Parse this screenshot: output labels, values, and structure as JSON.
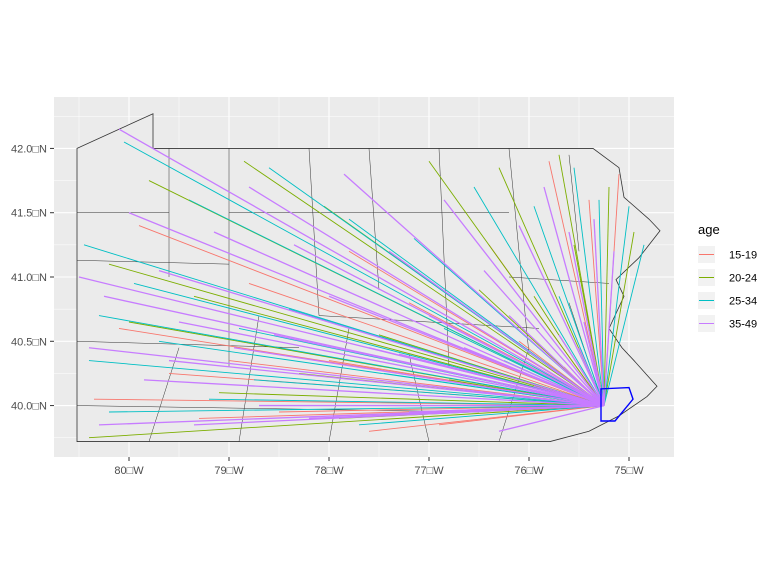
{
  "plot": {
    "panel_background": "#ebebeb",
    "grid_color": "#ffffff",
    "county_border_color": "#333333",
    "county_fill": "#ebebeb",
    "destination_county_color": "#0000ff"
  },
  "axes": {
    "x_ticks": [
      {
        "value": -80,
        "label": "80□W"
      },
      {
        "value": -79,
        "label": "79□W"
      },
      {
        "value": -78,
        "label": "78□W"
      },
      {
        "value": -77,
        "label": "77□W"
      },
      {
        "value": -76,
        "label": "76□W"
      },
      {
        "value": -75,
        "label": "75□W"
      }
    ],
    "y_ticks": [
      {
        "value": 40.0,
        "label": "40.0□N"
      },
      {
        "value": 40.5,
        "label": "40.5□N"
      },
      {
        "value": 41.0,
        "label": "41.0□N"
      },
      {
        "value": 41.5,
        "label": "41.5□N"
      },
      {
        "value": 42.0,
        "label": "42.0□N"
      }
    ],
    "xlim": [
      -80.75,
      -74.55
    ],
    "ylim": [
      39.6,
      42.4
    ]
  },
  "legend": {
    "title": "age",
    "items": [
      {
        "label": "15-19",
        "color": "#f8766d"
      },
      {
        "label": "20-24",
        "color": "#7cae00"
      },
      {
        "label": "25-34",
        "color": "#00bfc4"
      },
      {
        "label": "35-49",
        "color": "#c77cff"
      }
    ]
  },
  "chart_data": {
    "type": "map-flow",
    "destination": {
      "lon": -75.25,
      "lat": 40.0
    },
    "series": [
      {
        "name": "15-19",
        "origins": [
          [
            -80.35,
            40.05
          ],
          [
            -79.9,
            41.4
          ],
          [
            -79.6,
            40.25
          ],
          [
            -79.3,
            39.9
          ],
          [
            -78.8,
            40.95
          ],
          [
            -78.5,
            39.95
          ],
          [
            -78.0,
            40.35
          ],
          [
            -77.6,
            39.8
          ],
          [
            -77.2,
            40.8
          ],
          [
            -76.9,
            39.85
          ],
          [
            -76.4,
            41.25
          ],
          [
            -76.1,
            40.5
          ],
          [
            -75.8,
            41.9
          ],
          [
            -75.65,
            40.3
          ],
          [
            -75.4,
            41.6
          ],
          [
            -75.1,
            41.8
          ],
          [
            -80.1,
            40.6
          ],
          [
            -79.0,
            40.35
          ],
          [
            -77.8,
            41.2
          ],
          [
            -76.6,
            40.0
          ]
        ]
      },
      {
        "name": "20-24",
        "origins": [
          [
            -80.4,
            39.75
          ],
          [
            -80.0,
            40.65
          ],
          [
            -79.8,
            41.75
          ],
          [
            -79.35,
            40.85
          ],
          [
            -78.85,
            41.9
          ],
          [
            -78.3,
            40.25
          ],
          [
            -78.05,
            41.55
          ],
          [
            -77.5,
            40.55
          ],
          [
            -77.0,
            41.9
          ],
          [
            -76.8,
            40.2
          ],
          [
            -76.3,
            41.85
          ],
          [
            -75.95,
            40.85
          ],
          [
            -75.7,
            41.95
          ],
          [
            -75.55,
            41.25
          ],
          [
            -75.2,
            41.7
          ],
          [
            -74.95,
            41.35
          ],
          [
            -80.2,
            41.1
          ],
          [
            -79.1,
            40.1
          ],
          [
            -77.9,
            39.9
          ],
          [
            -76.5,
            40.9
          ]
        ]
      },
      {
        "name": "25-34",
        "origins": [
          [
            -80.45,
            41.25
          ],
          [
            -80.3,
            40.7
          ],
          [
            -80.2,
            39.95
          ],
          [
            -80.05,
            42.05
          ],
          [
            -79.7,
            40.5
          ],
          [
            -79.4,
            41.6
          ],
          [
            -79.2,
            40.05
          ],
          [
            -78.9,
            40.6
          ],
          [
            -78.6,
            41.85
          ],
          [
            -78.4,
            40.75
          ],
          [
            -78.15,
            40.0
          ],
          [
            -77.8,
            41.45
          ],
          [
            -77.45,
            40.25
          ],
          [
            -77.15,
            41.3
          ],
          [
            -76.85,
            40.6
          ],
          [
            -76.55,
            41.7
          ],
          [
            -76.25,
            40.35
          ],
          [
            -75.95,
            41.55
          ],
          [
            -75.7,
            40.85
          ],
          [
            -75.55,
            41.85
          ],
          [
            -75.3,
            41.6
          ],
          [
            -75.0,
            41.55
          ],
          [
            -74.85,
            41.25
          ],
          [
            -80.4,
            40.35
          ],
          [
            -79.95,
            40.95
          ],
          [
            -78.75,
            40.2
          ],
          [
            -77.7,
            39.85
          ],
          [
            -76.7,
            39.95
          ]
        ]
      },
      {
        "name": "35-49",
        "origins": [
          [
            -80.5,
            41.0
          ],
          [
            -80.4,
            40.45
          ],
          [
            -80.3,
            39.85
          ],
          [
            -80.1,
            42.15
          ],
          [
            -80.0,
            41.5
          ],
          [
            -79.85,
            40.2
          ],
          [
            -79.7,
            41.05
          ],
          [
            -79.5,
            40.65
          ],
          [
            -79.35,
            39.85
          ],
          [
            -79.15,
            41.35
          ],
          [
            -78.95,
            40.45
          ],
          [
            -78.8,
            41.7
          ],
          [
            -78.55,
            40.55
          ],
          [
            -78.35,
            41.25
          ],
          [
            -78.2,
            39.9
          ],
          [
            -78.0,
            40.85
          ],
          [
            -77.85,
            41.8
          ],
          [
            -77.6,
            40.45
          ],
          [
            -77.4,
            41.2
          ],
          [
            -77.2,
            39.95
          ],
          [
            -77.0,
            40.7
          ],
          [
            -76.85,
            41.6
          ],
          [
            -76.65,
            40.45
          ],
          [
            -76.45,
            41.05
          ],
          [
            -76.3,
            39.8
          ],
          [
            -76.1,
            41.4
          ],
          [
            -75.95,
            40.15
          ],
          [
            -75.85,
            41.7
          ],
          [
            -75.7,
            40.55
          ],
          [
            -75.6,
            41.35
          ],
          [
            -75.45,
            40.65
          ],
          [
            -75.35,
            41.45
          ],
          [
            -75.15,
            41.2
          ],
          [
            -80.25,
            40.85
          ],
          [
            -79.6,
            40.35
          ],
          [
            -78.7,
            40.0
          ],
          [
            -77.3,
            40.4
          ],
          [
            -76.2,
            40.7
          ],
          [
            -75.8,
            40.3
          ],
          [
            -75.5,
            40.45
          ]
        ]
      }
    ],
    "xlabel": "",
    "ylabel": ""
  }
}
